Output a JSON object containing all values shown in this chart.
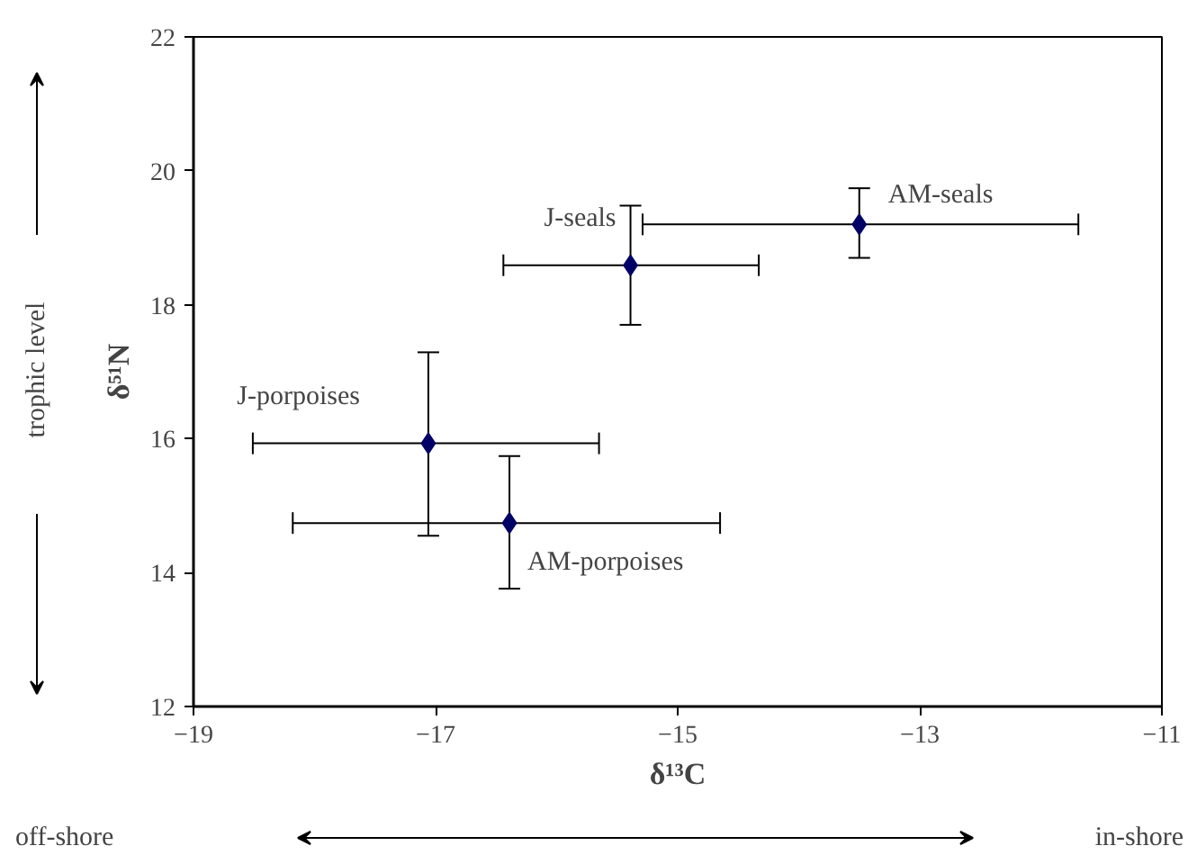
{
  "chart_data": {
    "type": "scatter",
    "xlabel": "δ¹³C",
    "ylabel": "δ⁵¹N",
    "x": [
      -17.06,
      -16.39,
      -15.39,
      -13.5
    ],
    "values": [
      15.93,
      14.74,
      18.59,
      19.2
    ],
    "color": "#000066",
    "marker": "diamond",
    "errors": [
      [
        14.55,
        17.29
      ],
      [
        13.76,
        15.74
      ],
      [
        17.7,
        19.48
      ],
      [
        18.7,
        19.74
      ]
    ],
    "xerrors": [
      [
        -18.51,
        -15.65
      ],
      [
        -18.18,
        -14.65
      ],
      [
        -16.44,
        -14.33
      ],
      [
        -15.29,
        -11.69
      ]
    ],
    "xlim": [
      -19,
      -11
    ],
    "xticks": [
      -19,
      -17,
      -15,
      -13,
      -11
    ],
    "ylim": [
      12,
      22
    ],
    "yticks": [
      12,
      14,
      16,
      18,
      20,
      22
    ],
    "grid": false,
    "annotations": [
      {
        "text": "J-porpoises",
        "x": -17.06,
        "y": 15.93
      },
      {
        "text": "AM-porpoises",
        "x": -16.39,
        "y": 14.74
      },
      {
        "text": "J-seals",
        "x": -15.39,
        "y": 18.59
      },
      {
        "text": "AM-seals",
        "x": -13.5,
        "y": 19.2
      },
      "trophic level",
      "off-shore",
      "in-shore"
    ]
  }
}
